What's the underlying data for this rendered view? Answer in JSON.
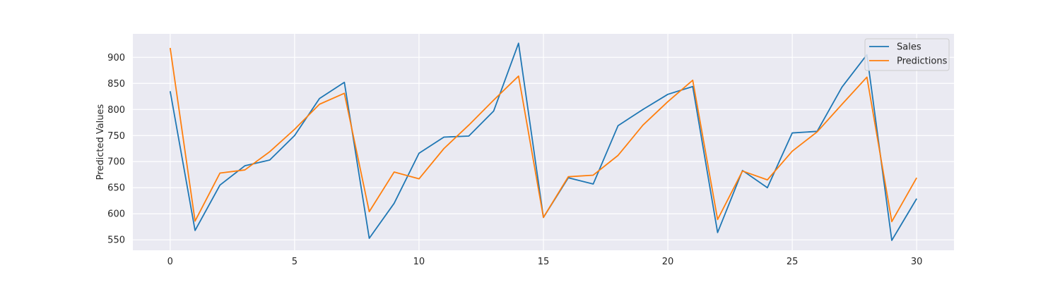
{
  "chart_data": {
    "type": "line",
    "title": "",
    "xlabel": "",
    "ylabel": "Predicted Values",
    "xlim": [
      -1.5,
      31.5
    ],
    "ylim": [
      530,
      945
    ],
    "xticks": [
      0,
      5,
      10,
      15,
      20,
      25,
      30
    ],
    "yticks": [
      550,
      600,
      650,
      700,
      750,
      800,
      850,
      900
    ],
    "grid": true,
    "legend_position": "top-right",
    "x": [
      0,
      1,
      2,
      3,
      4,
      5,
      6,
      7,
      8,
      9,
      10,
      11,
      12,
      13,
      14,
      15,
      16,
      17,
      18,
      19,
      20,
      21,
      22,
      23,
      24,
      25,
      26,
      27,
      28,
      29,
      30
    ],
    "series": [
      {
        "name": "Sales",
        "color": "#1f77b4",
        "values": [
          835,
          568,
          655,
          692,
          703,
          750,
          821,
          852,
          553,
          620,
          716,
          747,
          749,
          797,
          927,
          593,
          669,
          657,
          769,
          800,
          829,
          844,
          564,
          683,
          650,
          755,
          758,
          843,
          905,
          549,
          629
        ]
      },
      {
        "name": "Predictions",
        "color": "#ff7f0e",
        "values": [
          918,
          586,
          678,
          684,
          719,
          762,
          810,
          831,
          604,
          680,
          667,
          725,
          770,
          818,
          864,
          593,
          671,
          674,
          712,
          770,
          815,
          856,
          589,
          682,
          665,
          720,
          757,
          810,
          862,
          585,
          669
        ]
      }
    ]
  }
}
